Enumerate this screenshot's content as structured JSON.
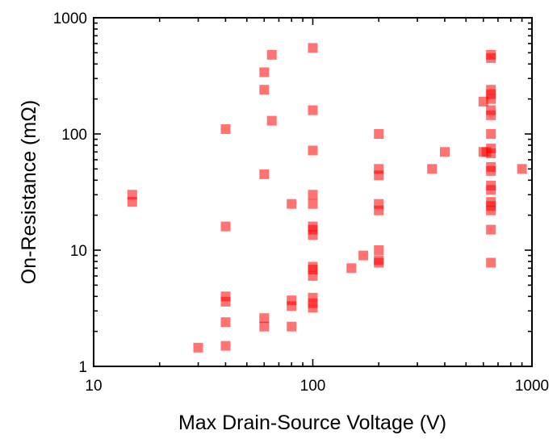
{
  "chart_data": {
    "type": "scatter",
    "xlabel": "Max Drain-Source Voltage (V)",
    "ylabel": "On-Resistance (mΩ)",
    "x_scale": "log",
    "y_scale": "log",
    "xlim": [
      10,
      1000
    ],
    "ylim": [
      1,
      1000
    ],
    "x_ticks": [
      10,
      100,
      1000
    ],
    "y_ticks": [
      1,
      10,
      100,
      1000
    ],
    "x_tick_labels": [
      "10",
      "100",
      "1000"
    ],
    "y_tick_labels": [
      "1",
      "10",
      "100",
      "1000"
    ],
    "grid": false,
    "marker": "square",
    "marker_color": "#ff0000",
    "marker_opacity": 0.55,
    "points": [
      [
        15,
        30
      ],
      [
        15,
        26
      ],
      [
        30,
        1.45
      ],
      [
        40,
        110
      ],
      [
        40,
        16
      ],
      [
        40,
        4.0
      ],
      [
        40,
        3.6
      ],
      [
        40,
        2.4
      ],
      [
        40,
        1.5
      ],
      [
        60,
        340
      ],
      [
        60,
        240
      ],
      [
        60,
        45
      ],
      [
        60,
        2.6
      ],
      [
        60,
        2.2
      ],
      [
        65,
        480
      ],
      [
        65,
        130
      ],
      [
        80,
        25
      ],
      [
        80,
        3.7
      ],
      [
        80,
        3.3
      ],
      [
        80,
        2.2
      ],
      [
        100,
        550
      ],
      [
        100,
        160
      ],
      [
        100,
        72
      ],
      [
        100,
        30
      ],
      [
        100,
        25
      ],
      [
        100,
        16
      ],
      [
        100,
        15
      ],
      [
        100,
        13.5
      ],
      [
        100,
        7.2
      ],
      [
        100,
        6.8
      ],
      [
        100,
        6.0
      ],
      [
        100,
        3.9
      ],
      [
        100,
        3.5
      ],
      [
        100,
        3.2
      ],
      [
        150,
        7.0
      ],
      [
        170,
        9.0
      ],
      [
        200,
        100
      ],
      [
        200,
        50
      ],
      [
        200,
        44
      ],
      [
        200,
        25
      ],
      [
        200,
        22
      ],
      [
        200,
        10
      ],
      [
        200,
        8.2
      ],
      [
        200,
        7.8
      ],
      [
        350,
        50
      ],
      [
        400,
        70
      ],
      [
        600,
        190
      ],
      [
        600,
        70
      ],
      [
        620,
        70
      ],
      [
        650,
        480
      ],
      [
        650,
        450
      ],
      [
        650,
        240
      ],
      [
        650,
        220
      ],
      [
        650,
        200
      ],
      [
        650,
        160
      ],
      [
        650,
        145
      ],
      [
        650,
        100
      ],
      [
        650,
        75
      ],
      [
        650,
        68
      ],
      [
        650,
        52
      ],
      [
        650,
        48
      ],
      [
        650,
        36
      ],
      [
        650,
        33
      ],
      [
        650,
        26
      ],
      [
        650,
        24
      ],
      [
        650,
        22
      ],
      [
        650,
        15
      ],
      [
        650,
        7.8
      ],
      [
        900,
        50
      ]
    ]
  }
}
